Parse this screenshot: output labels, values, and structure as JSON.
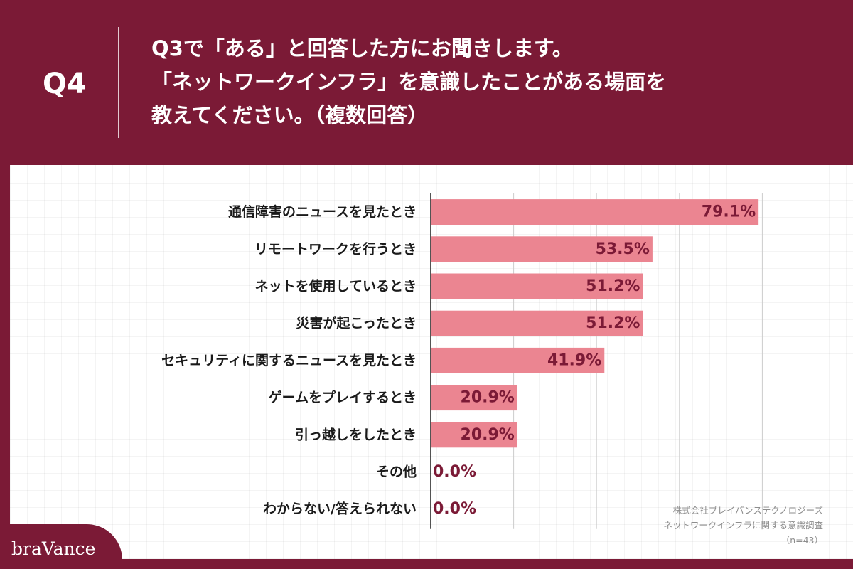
{
  "header": {
    "question_number": "Q4",
    "question_lines": [
      "Q3で「ある」と回答した方にお聞きします。",
      "「ネットワークインフラ」を意識したことがある場面を",
      "教えてください。（複数回答）"
    ]
  },
  "source": {
    "lines": [
      "株式会社ブレイバンステクノロジーズ",
      "ネットワークインフラに関する意識調査",
      "（n=43）"
    ]
  },
  "logo": {
    "text": "braVance"
  },
  "colors": {
    "brand": "#7b1a36",
    "bar": "#eb8591",
    "grid": "#cccccc",
    "value_text": "#7b1a36"
  },
  "chart_data": {
    "type": "bar",
    "orientation": "horizontal",
    "categories": [
      "通信障害のニュースを見たとき",
      "リモートワークを行うとき",
      "ネットを使用しているとき",
      "災害が起こったとき",
      "セキュリティに関するニュースを見たとき",
      "ゲームをプレイするとき",
      "引っ越しをしたとき",
      "その他",
      "わからない/答えられない"
    ],
    "values": [
      79.1,
      53.5,
      51.2,
      51.2,
      41.9,
      20.9,
      20.9,
      0.0,
      0.0
    ],
    "value_labels": [
      "79.1%",
      "53.5%",
      "51.2%",
      "51.2%",
      "41.9%",
      "20.9%",
      "20.9%",
      "0.0%",
      "0.0%"
    ],
    "xlim": [
      0,
      100
    ],
    "grid": true,
    "legend": "none"
  }
}
